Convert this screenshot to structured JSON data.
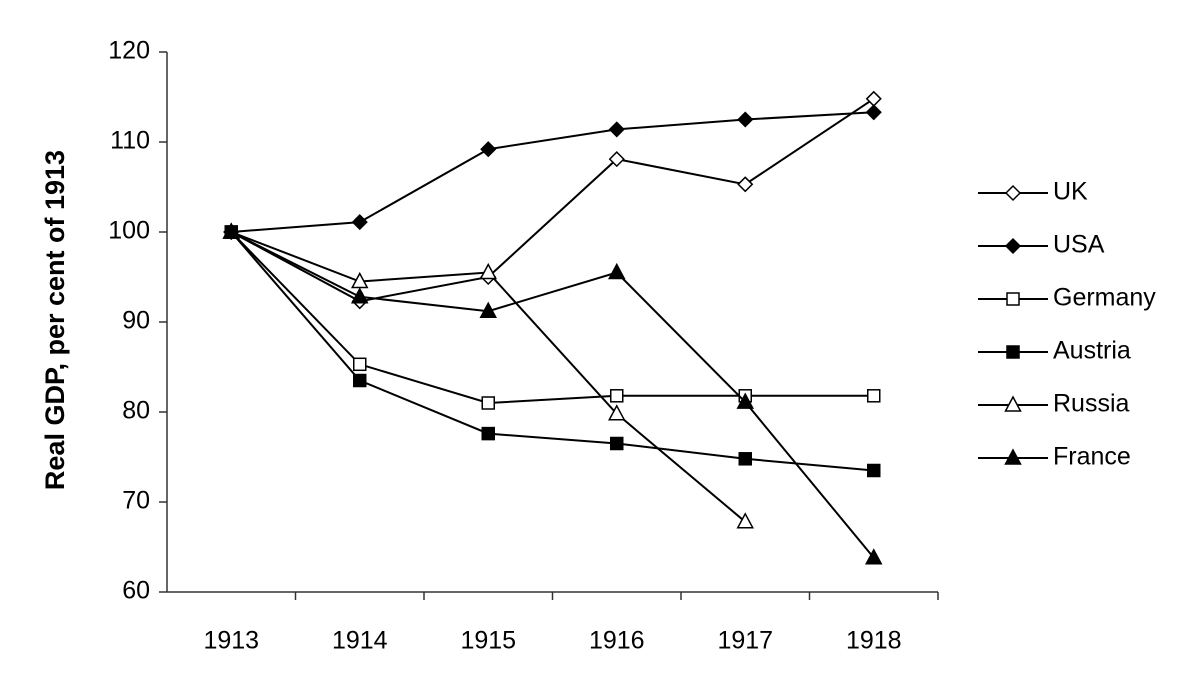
{
  "chart_data": {
    "type": "line",
    "y_label": "Real GDP, per cent of 1913",
    "categories": [
      "1913",
      "1914",
      "1915",
      "1916",
      "1917",
      "1918"
    ],
    "series": [
      {
        "name": "UK",
        "color": "#000000",
        "marker": "diamond",
        "filled": false,
        "values": [
          100,
          92.3,
          95,
          108.1,
          105.3,
          114.8
        ]
      },
      {
        "name": "USA",
        "color": "#000000",
        "marker": "diamond",
        "filled": true,
        "values": [
          100,
          101.1,
          109.2,
          111.4,
          112.5,
          113.3
        ]
      },
      {
        "name": "Germany",
        "color": "#000000",
        "marker": "square",
        "filled": false,
        "values": [
          100,
          85.3,
          81,
          81.8,
          81.8,
          81.8
        ]
      },
      {
        "name": "Austria",
        "color": "#000000",
        "marker": "square",
        "filled": true,
        "values": [
          100,
          83.5,
          77.6,
          76.5,
          74.8,
          73.5
        ]
      },
      {
        "name": "Russia",
        "color": "#000000",
        "marker": "triangle",
        "filled": false,
        "values": [
          100,
          94.5,
          95.5,
          79.8,
          67.8,
          null
        ]
      },
      {
        "name": "France",
        "color": "#000000",
        "marker": "triangle",
        "filled": true,
        "values": [
          100,
          92.8,
          91.2,
          95.5,
          81.1,
          63.8
        ]
      }
    ],
    "ylim": [
      60,
      120
    ],
    "yticks": [
      60,
      70,
      80,
      90,
      100,
      110,
      120
    ],
    "grid": false,
    "legend": "right"
  }
}
